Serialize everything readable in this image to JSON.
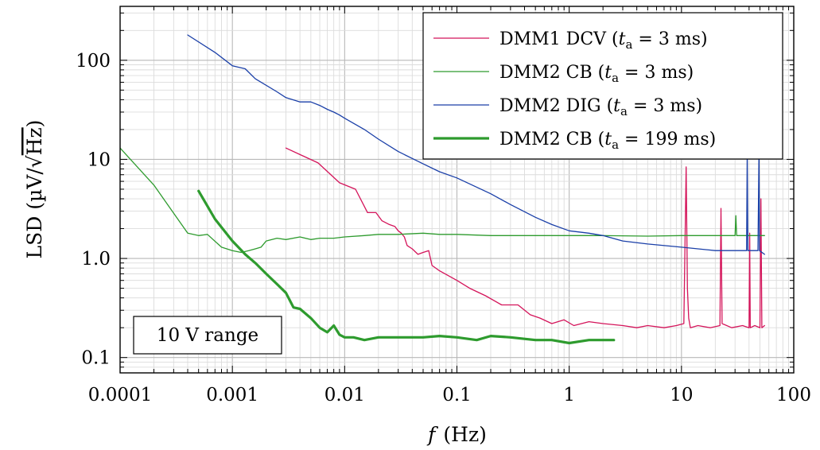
{
  "chart_data": {
    "type": "line",
    "title": "",
    "xlabel": "f (Hz)",
    "xlabel_var": "f",
    "xlabel_unit": "(Hz)",
    "ylabel": "LSD (µV/√Hz)",
    "ylabel_prefix": "LSD (µV/",
    "ylabel_radical": "√",
    "ylabel_radicand": "Hz",
    "ylabel_suffix": ")",
    "xscale": "log",
    "yscale": "log",
    "xlim": [
      0.0001,
      100
    ],
    "ylim": [
      0.07,
      350
    ],
    "grid": true,
    "legend_position": "top-right",
    "annotation": "10 V range",
    "xticks": [
      {
        "value": 0.0001,
        "label": "0.0001"
      },
      {
        "value": 0.001,
        "label": "0.001"
      },
      {
        "value": 0.01,
        "label": "0.01"
      },
      {
        "value": 0.1,
        "label": "0.1"
      },
      {
        "value": 1,
        "label": "1"
      },
      {
        "value": 10,
        "label": "10"
      },
      {
        "value": 100,
        "label": "100"
      }
    ],
    "yticks": [
      {
        "value": 0.1,
        "label": "0.1"
      },
      {
        "value": 1,
        "label": "1.0"
      },
      {
        "value": 10,
        "label": "10"
      },
      {
        "value": 100,
        "label": "100"
      }
    ],
    "series": [
      {
        "name": "DMM1 DCV (t_a = 3 ms)",
        "legend_pre": "DMM1 DCV (",
        "legend_sub": "a",
        "legend_post": " = 3 ms)",
        "color": "#d4145a",
        "width": 1.3,
        "x": [
          0.003,
          0.0058,
          0.009,
          0.0125,
          0.016,
          0.019,
          0.0215,
          0.025,
          0.028,
          0.03,
          0.032,
          0.034,
          0.036,
          0.04,
          0.045,
          0.05,
          0.056,
          0.06,
          0.07,
          0.1,
          0.13,
          0.18,
          0.25,
          0.35,
          0.45,
          0.55,
          0.7,
          0.9,
          1.1,
          1.5,
          2.0,
          3.0,
          4.0,
          5.0,
          7.0,
          9.0,
          10.5,
          11.0,
          11.3,
          11.6,
          12.0,
          14.0,
          18.0,
          22.0,
          22.5,
          23.0,
          28.0,
          35.0,
          40.0,
          40.5,
          41.0,
          45.0,
          50.0,
          51.0,
          52.0,
          55.0
        ],
        "y": [
          13,
          9.2,
          5.8,
          5.0,
          2.9,
          2.9,
          2.4,
          2.2,
          2.1,
          1.9,
          1.8,
          1.65,
          1.35,
          1.25,
          1.1,
          1.15,
          1.2,
          0.85,
          0.75,
          0.6,
          0.5,
          0.42,
          0.34,
          0.34,
          0.27,
          0.25,
          0.22,
          0.24,
          0.21,
          0.23,
          0.22,
          0.21,
          0.2,
          0.21,
          0.2,
          0.21,
          0.22,
          8.4,
          0.5,
          0.25,
          0.2,
          0.21,
          0.2,
          0.21,
          3.2,
          0.22,
          0.2,
          0.21,
          0.2,
          1.8,
          0.2,
          0.21,
          0.2,
          4.0,
          0.2,
          0.21
        ]
      },
      {
        "name": "DMM2 CB (t_a = 3 ms)",
        "legend_pre": "DMM2 CB (",
        "legend_sub": "a",
        "legend_post": " = 3 ms)",
        "color": "#2e9b2e",
        "width": 1.3,
        "x": [
          0.0001,
          0.0002,
          0.0004,
          0.0005,
          0.0006,
          0.0008,
          0.001,
          0.0012,
          0.0014,
          0.0016,
          0.0018,
          0.002,
          0.0025,
          0.003,
          0.004,
          0.005,
          0.006,
          0.008,
          0.01,
          0.015,
          0.02,
          0.03,
          0.05,
          0.07,
          0.1,
          0.2,
          0.5,
          1.0,
          2.0,
          5.0,
          10.0,
          20.0,
          30.0,
          30.5,
          31.0,
          40.0,
          50.0,
          55.0
        ],
        "y": [
          13,
          5.5,
          1.8,
          1.7,
          1.75,
          1.3,
          1.2,
          1.15,
          1.2,
          1.25,
          1.3,
          1.5,
          1.6,
          1.55,
          1.65,
          1.55,
          1.6,
          1.6,
          1.65,
          1.7,
          1.75,
          1.75,
          1.8,
          1.75,
          1.75,
          1.7,
          1.7,
          1.7,
          1.7,
          1.68,
          1.7,
          1.7,
          1.7,
          2.7,
          1.7,
          1.7,
          1.7,
          1.7
        ]
      },
      {
        "name": "DMM2 DIG (t_a = 3 ms)",
        "legend_pre": "DMM2 DIG (",
        "legend_sub": "a",
        "legend_post": " = 3 ms)",
        "color": "#1a3fa8",
        "width": 1.3,
        "x": [
          0.0004,
          0.0007,
          0.001,
          0.0013,
          0.0016,
          0.0025,
          0.003,
          0.004,
          0.005,
          0.006,
          0.007,
          0.008,
          0.009,
          0.01,
          0.015,
          0.02,
          0.03,
          0.05,
          0.07,
          0.1,
          0.2,
          0.3,
          0.5,
          0.7,
          1.0,
          1.5,
          2.0,
          3.0,
          5.0,
          10.0,
          20.0,
          38.0,
          38.5,
          39.0,
          48.0,
          49.0,
          49.5,
          55.0
        ],
        "y": [
          180,
          120,
          88,
          82,
          65,
          48,
          42,
          38,
          38,
          35,
          32,
          30,
          28,
          26,
          20,
          16,
          12,
          9.0,
          7.5,
          6.5,
          4.5,
          3.5,
          2.6,
          2.2,
          1.9,
          1.8,
          1.7,
          1.5,
          1.4,
          1.3,
          1.2,
          1.2,
          12,
          1.2,
          1.2,
          12,
          1.2,
          1.1
        ]
      },
      {
        "name": "DMM2 CB (t_a = 199 ms)",
        "legend_pre": "DMM2 CB (",
        "legend_sub": "a",
        "legend_post": " = 199 ms)",
        "color": "#2e9b2e",
        "width": 3.2,
        "x": [
          0.0005,
          0.0007,
          0.001,
          0.0013,
          0.0016,
          0.002,
          0.0025,
          0.003,
          0.0035,
          0.004,
          0.005,
          0.006,
          0.007,
          0.008,
          0.009,
          0.01,
          0.012,
          0.015,
          0.02,
          0.03,
          0.05,
          0.07,
          0.1,
          0.15,
          0.2,
          0.3,
          0.5,
          0.7,
          1.0,
          1.5,
          2.0,
          2.5
        ],
        "y": [
          4.8,
          2.5,
          1.5,
          1.1,
          0.9,
          0.7,
          0.55,
          0.45,
          0.32,
          0.31,
          0.25,
          0.2,
          0.18,
          0.21,
          0.17,
          0.16,
          0.16,
          0.15,
          0.16,
          0.16,
          0.16,
          0.165,
          0.16,
          0.15,
          0.165,
          0.16,
          0.15,
          0.15,
          0.14,
          0.15,
          0.15,
          0.15
        ]
      }
    ]
  }
}
